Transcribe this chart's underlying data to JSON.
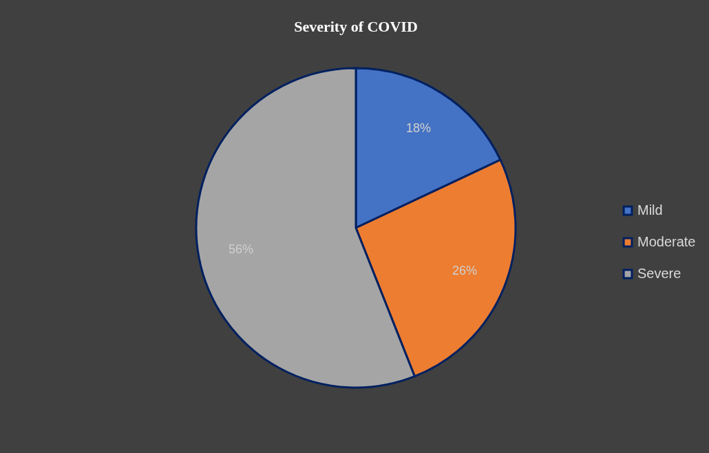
{
  "chart_data": {
    "type": "pie",
    "title": "Severity of COVID",
    "categories": [
      "Mild",
      "Moderate",
      "Severe"
    ],
    "values": [
      18,
      26,
      56
    ],
    "colors": [
      "#4472c4",
      "#ed7d31",
      "#a5a5a5"
    ],
    "value_labels": [
      "18%",
      "26%",
      "56%"
    ],
    "legend": "right"
  }
}
